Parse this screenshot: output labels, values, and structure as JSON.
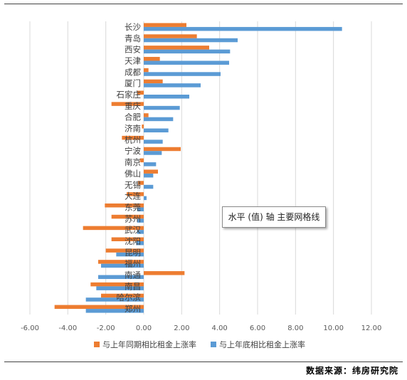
{
  "chart_data": {
    "type": "bar",
    "orientation": "horizontal",
    "categories": [
      "长沙",
      "青岛",
      "西安",
      "天津",
      "成都",
      "厦门",
      "石家庄",
      "重庆",
      "合肥",
      "济南",
      "杭州",
      "宁波",
      "南京",
      "佛山",
      "无锡",
      "大连",
      "东莞",
      "苏州",
      "武汉",
      "沈阳",
      "昆明",
      "福州",
      "南通",
      "南昌",
      "哈尔滨",
      "郑州"
    ],
    "series": [
      {
        "name": "与上年同期相比租金上涨率",
        "color": "#ED7D31",
        "values": [
          2.25,
          2.8,
          3.45,
          0.85,
          0.25,
          1.0,
          -0.35,
          -1.7,
          0.25,
          -0.1,
          -1.15,
          1.95,
          -0.2,
          0.75,
          -0.3,
          -0.9,
          -2.05,
          -1.7,
          -3.2,
          -1.7,
          -2.0,
          -2.4,
          2.15,
          -2.8,
          -2.25,
          -4.7
        ]
      },
      {
        "name": "与上年底相比租金上涨率",
        "color": "#5B9BD5",
        "values": [
          10.45,
          4.95,
          4.55,
          4.5,
          4.05,
          3.0,
          2.4,
          1.9,
          1.55,
          1.3,
          1.0,
          0.95,
          0.65,
          0.5,
          0.5,
          0.15,
          -0.35,
          -0.35,
          -0.35,
          -0.4,
          -1.45,
          -2.25,
          -2.4,
          -2.5,
          -3.05,
          -3.05
        ]
      }
    ],
    "xlim": [
      -6,
      12
    ],
    "xticks": [
      "-6.00",
      "-4.00",
      "-2.00",
      "0.00",
      "2.00",
      "4.00",
      "6.00",
      "8.00",
      "10.00",
      "12.00"
    ],
    "grid": "vertical major gridlines",
    "legend": "bottom"
  },
  "tooltip": "水平 (值) 轴 主要网格线",
  "source_note": "数据来源：纬房研究院"
}
